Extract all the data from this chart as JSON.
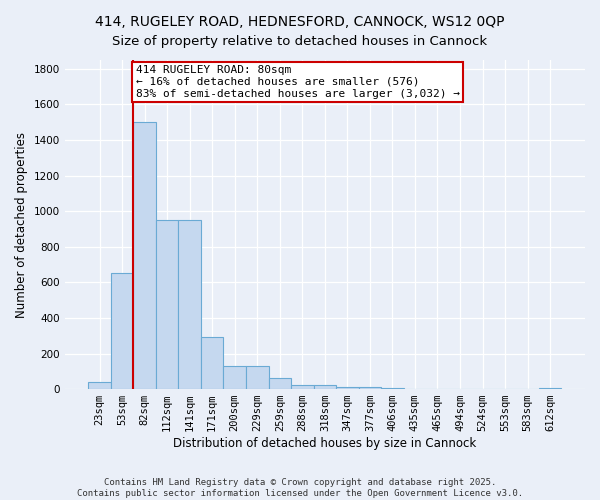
{
  "title1": "414, RUGELEY ROAD, HEDNESFORD, CANNOCK, WS12 0QP",
  "title2": "Size of property relative to detached houses in Cannock",
  "xlabel": "Distribution of detached houses by size in Cannock",
  "ylabel": "Number of detached properties",
  "categories": [
    "23sqm",
    "53sqm",
    "82sqm",
    "112sqm",
    "141sqm",
    "171sqm",
    "200sqm",
    "229sqm",
    "259sqm",
    "288sqm",
    "318sqm",
    "347sqm",
    "377sqm",
    "406sqm",
    "435sqm",
    "465sqm",
    "494sqm",
    "524sqm",
    "553sqm",
    "583sqm",
    "612sqm"
  ],
  "values": [
    40,
    650,
    1500,
    950,
    950,
    290,
    130,
    130,
    60,
    25,
    25,
    12,
    12,
    8,
    0,
    0,
    0,
    0,
    0,
    0,
    8
  ],
  "bar_color": "#c5d8ef",
  "bar_edge_color": "#6aaad4",
  "vline_color": "#cc0000",
  "annotation_text": "414 RUGELEY ROAD: 80sqm\n← 16% of detached houses are smaller (576)\n83% of semi-detached houses are larger (3,032) →",
  "annotation_box_color": "#ffffff",
  "annotation_box_edge_color": "#cc0000",
  "ylim": [
    0,
    1850
  ],
  "yticks": [
    0,
    200,
    400,
    600,
    800,
    1000,
    1200,
    1400,
    1600,
    1800
  ],
  "background_color": "#eaeff8",
  "grid_color": "#ffffff",
  "footer": "Contains HM Land Registry data © Crown copyright and database right 2025.\nContains public sector information licensed under the Open Government Licence v3.0.",
  "title_fontsize": 10,
  "subtitle_fontsize": 9.5,
  "axis_label_fontsize": 8.5,
  "tick_fontsize": 7.5,
  "annotation_fontsize": 8,
  "footer_fontsize": 6.5
}
